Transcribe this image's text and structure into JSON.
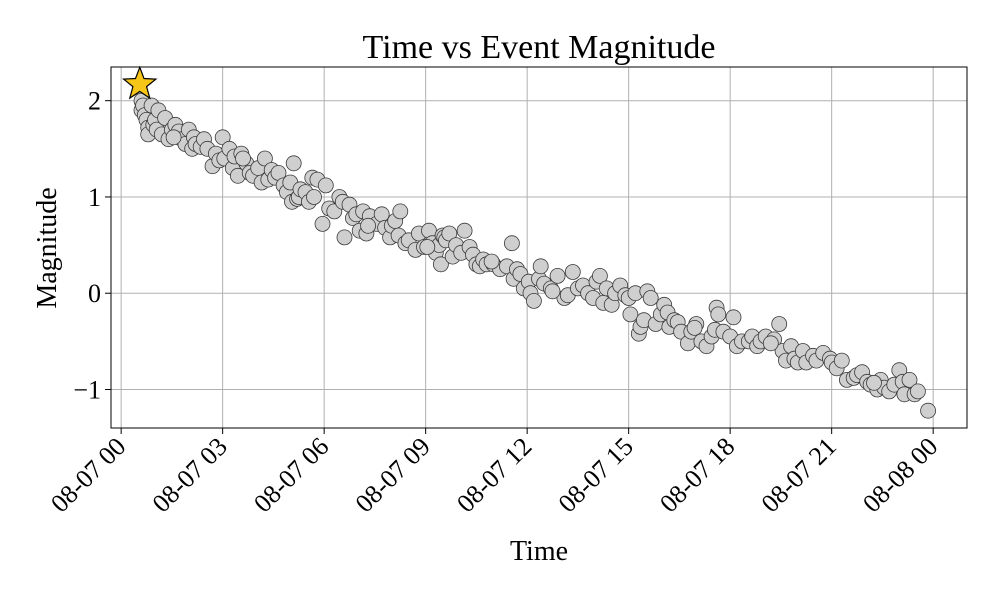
{
  "chart_data": {
    "type": "scatter",
    "title": "Time vs Event Magnitude",
    "xlabel": "Time",
    "ylabel": "Magnitude",
    "xlim_hours": [
      -0.3,
      25.0
    ],
    "ylim": [
      -1.4,
      2.35
    ],
    "x_tick_hours": [
      0,
      3,
      6,
      9,
      12,
      15,
      18,
      21,
      24
    ],
    "x_tick_labels": [
      "08-07 00",
      "08-07 03",
      "08-07 06",
      "08-07 09",
      "08-07 12",
      "08-07 15",
      "08-07 18",
      "08-07 21",
      "08-08 00"
    ],
    "y_ticks": [
      -1,
      0,
      1,
      2
    ],
    "y_tick_labels": [
      "−1",
      "0",
      "1",
      "2"
    ],
    "grid": true,
    "mainshock": {
      "hour": 0.55,
      "magnitude": 2.17,
      "marker": "star",
      "color": "#f5c518"
    },
    "point_style": {
      "fill": "#cfcfcf",
      "edge": "#3a3a3a"
    },
    "points": [
      [
        0.6,
        1.9
      ],
      [
        0.6,
        2.0
      ],
      [
        0.65,
        1.95
      ],
      [
        0.7,
        1.85
      ],
      [
        0.75,
        1.8
      ],
      [
        0.8,
        1.72
      ],
      [
        0.8,
        1.65
      ],
      [
        0.9,
        1.95
      ],
      [
        0.95,
        1.75
      ],
      [
        1.0,
        1.8
      ],
      [
        1.05,
        1.7
      ],
      [
        1.1,
        1.9
      ],
      [
        1.2,
        1.65
      ],
      [
        1.3,
        1.82
      ],
      [
        1.4,
        1.6
      ],
      [
        1.5,
        1.7
      ],
      [
        1.6,
        1.75
      ],
      [
        1.7,
        1.68
      ],
      [
        1.8,
        1.6
      ],
      [
        1.9,
        1.55
      ],
      [
        2.0,
        1.7
      ],
      [
        2.1,
        1.5
      ],
      [
        2.15,
        1.62
      ],
      [
        2.2,
        1.55
      ],
      [
        2.35,
        1.52
      ],
      [
        2.45,
        1.6
      ],
      [
        2.55,
        1.5
      ],
      [
        2.7,
        1.32
      ],
      [
        2.8,
        1.45
      ],
      [
        2.9,
        1.38
      ],
      [
        3.0,
        1.62
      ],
      [
        3.05,
        1.4
      ],
      [
        3.2,
        1.5
      ],
      [
        3.3,
        1.3
      ],
      [
        3.35,
        1.42
      ],
      [
        3.45,
        1.22
      ],
      [
        3.55,
        1.45
      ],
      [
        3.7,
        1.35
      ],
      [
        3.8,
        1.25
      ],
      [
        3.9,
        1.22
      ],
      [
        4.05,
        1.3
      ],
      [
        4.15,
        1.15
      ],
      [
        4.25,
        1.4
      ],
      [
        4.35,
        1.18
      ],
      [
        4.45,
        1.28
      ],
      [
        4.55,
        1.2
      ],
      [
        4.65,
        1.25
      ],
      [
        4.8,
        1.12
      ],
      [
        4.9,
        1.05
      ],
      [
        5.0,
        1.15
      ],
      [
        5.05,
        0.95
      ],
      [
        5.1,
        1.35
      ],
      [
        5.2,
        0.98
      ],
      [
        5.25,
        1.0
      ],
      [
        5.3,
        1.08
      ],
      [
        5.45,
        1.05
      ],
      [
        5.55,
        0.95
      ],
      [
        5.65,
        1.2
      ],
      [
        5.8,
        1.18
      ],
      [
        5.95,
        0.72
      ],
      [
        6.05,
        1.12
      ],
      [
        6.15,
        0.88
      ],
      [
        6.3,
        0.85
      ],
      [
        6.45,
        1.0
      ],
      [
        6.55,
        0.95
      ],
      [
        6.6,
        0.58
      ],
      [
        6.75,
        0.92
      ],
      [
        6.85,
        0.78
      ],
      [
        6.95,
        0.82
      ],
      [
        7.05,
        0.65
      ],
      [
        7.15,
        0.85
      ],
      [
        7.25,
        0.62
      ],
      [
        7.35,
        0.8
      ],
      [
        7.55,
        0.72
      ],
      [
        7.7,
        0.82
      ],
      [
        7.8,
        0.68
      ],
      [
        7.95,
        0.58
      ],
      [
        8.0,
        0.7
      ],
      [
        8.1,
        0.75
      ],
      [
        8.2,
        0.6
      ],
      [
        8.25,
        0.85
      ],
      [
        8.4,
        0.52
      ],
      [
        8.5,
        0.55
      ],
      [
        8.7,
        0.45
      ],
      [
        8.8,
        0.62
      ],
      [
        8.95,
        0.48
      ],
      [
        9.1,
        0.65
      ],
      [
        9.2,
        0.52
      ],
      [
        9.3,
        0.42
      ],
      [
        9.4,
        0.5
      ],
      [
        9.45,
        0.3
      ],
      [
        9.5,
        0.6
      ],
      [
        9.55,
        0.58
      ],
      [
        9.6,
        0.55
      ],
      [
        9.7,
        0.62
      ],
      [
        9.8,
        0.38
      ],
      [
        9.9,
        0.5
      ],
      [
        10.05,
        0.42
      ],
      [
        10.15,
        0.65
      ],
      [
        10.3,
        0.48
      ],
      [
        10.4,
        0.4
      ],
      [
        10.5,
        0.3
      ],
      [
        10.6,
        0.28
      ],
      [
        10.7,
        0.35
      ],
      [
        10.8,
        0.3
      ],
      [
        11.0,
        0.3
      ],
      [
        11.2,
        0.25
      ],
      [
        11.4,
        0.28
      ],
      [
        11.55,
        0.52
      ],
      [
        11.6,
        0.15
      ],
      [
        11.7,
        0.25
      ],
      [
        11.8,
        0.2
      ],
      [
        11.9,
        0.05
      ],
      [
        12.05,
        0.12
      ],
      [
        12.1,
        0.0
      ],
      [
        12.2,
        -0.08
      ],
      [
        12.35,
        0.15
      ],
      [
        12.4,
        0.28
      ],
      [
        12.5,
        0.1
      ],
      [
        12.7,
        0.05
      ],
      [
        12.9,
        0.18
      ],
      [
        13.1,
        -0.05
      ],
      [
        13.2,
        -0.02
      ],
      [
        13.35,
        0.22
      ],
      [
        13.5,
        0.05
      ],
      [
        13.65,
        0.08
      ],
      [
        13.8,
        0.0
      ],
      [
        13.95,
        -0.05
      ],
      [
        14.05,
        0.12
      ],
      [
        14.15,
        0.18
      ],
      [
        14.25,
        -0.1
      ],
      [
        14.35,
        0.05
      ],
      [
        14.5,
        -0.12
      ],
      [
        14.6,
        0.0
      ],
      [
        14.75,
        0.08
      ],
      [
        14.9,
        -0.02
      ],
      [
        15.0,
        -0.05
      ],
      [
        15.05,
        -0.22
      ],
      [
        15.2,
        0.0
      ],
      [
        15.3,
        -0.42
      ],
      [
        15.35,
        -0.35
      ],
      [
        15.45,
        -0.28
      ],
      [
        15.55,
        0.02
      ],
      [
        15.65,
        -0.05
      ],
      [
        15.8,
        -0.32
      ],
      [
        15.95,
        -0.22
      ],
      [
        16.05,
        -0.12
      ],
      [
        16.15,
        -0.2
      ],
      [
        16.2,
        -0.35
      ],
      [
        16.35,
        -0.28
      ],
      [
        16.45,
        -0.3
      ],
      [
        16.55,
        -0.4
      ],
      [
        16.75,
        -0.52
      ],
      [
        16.85,
        -0.4
      ],
      [
        17.0,
        -0.32
      ],
      [
        17.15,
        -0.5
      ],
      [
        17.3,
        -0.55
      ],
      [
        17.45,
        -0.45
      ],
      [
        17.55,
        -0.38
      ],
      [
        17.6,
        -0.15
      ],
      [
        17.65,
        -0.22
      ],
      [
        17.8,
        -0.4
      ],
      [
        18.0,
        -0.45
      ],
      [
        18.1,
        -0.25
      ],
      [
        18.2,
        -0.55
      ],
      [
        18.35,
        -0.5
      ],
      [
        18.55,
        -0.5
      ],
      [
        18.65,
        -0.45
      ],
      [
        18.8,
        -0.55
      ],
      [
        18.9,
        -0.5
      ],
      [
        19.05,
        -0.45
      ],
      [
        19.3,
        -0.48
      ],
      [
        19.45,
        -0.32
      ],
      [
        19.55,
        -0.6
      ],
      [
        19.65,
        -0.7
      ],
      [
        19.8,
        -0.55
      ],
      [
        19.9,
        -0.68
      ],
      [
        20.0,
        -0.72
      ],
      [
        20.15,
        -0.6
      ],
      [
        20.25,
        -0.72
      ],
      [
        20.45,
        -0.65
      ],
      [
        20.55,
        -0.7
      ],
      [
        20.75,
        -0.62
      ],
      [
        20.95,
        -0.68
      ],
      [
        21.0,
        -0.72
      ],
      [
        21.15,
        -0.78
      ],
      [
        21.3,
        -0.7
      ],
      [
        21.45,
        -0.9
      ],
      [
        21.65,
        -0.88
      ],
      [
        21.75,
        -0.85
      ],
      [
        21.9,
        -0.82
      ],
      [
        22.05,
        -0.92
      ],
      [
        22.15,
        -0.95
      ],
      [
        22.35,
        -1.0
      ],
      [
        22.45,
        -0.9
      ],
      [
        22.55,
        -0.98
      ],
      [
        22.7,
        -1.02
      ],
      [
        22.85,
        -0.95
      ],
      [
        23.0,
        -0.8
      ],
      [
        23.1,
        -0.92
      ],
      [
        23.15,
        -1.05
      ],
      [
        23.3,
        -0.9
      ],
      [
        23.45,
        -1.05
      ],
      [
        23.55,
        -1.02
      ],
      [
        23.85,
        -1.22
      ],
      [
        7.3,
        0.7
      ],
      [
        9.05,
        0.48
      ],
      [
        10.95,
        0.33
      ],
      [
        12.75,
        0.02
      ],
      [
        16.95,
        -0.36
      ],
      [
        19.2,
        -0.52
      ],
      [
        22.25,
        -0.93
      ],
      [
        1.55,
        1.62
      ],
      [
        3.6,
        1.4
      ],
      [
        5.7,
        1.0
      ]
    ]
  }
}
